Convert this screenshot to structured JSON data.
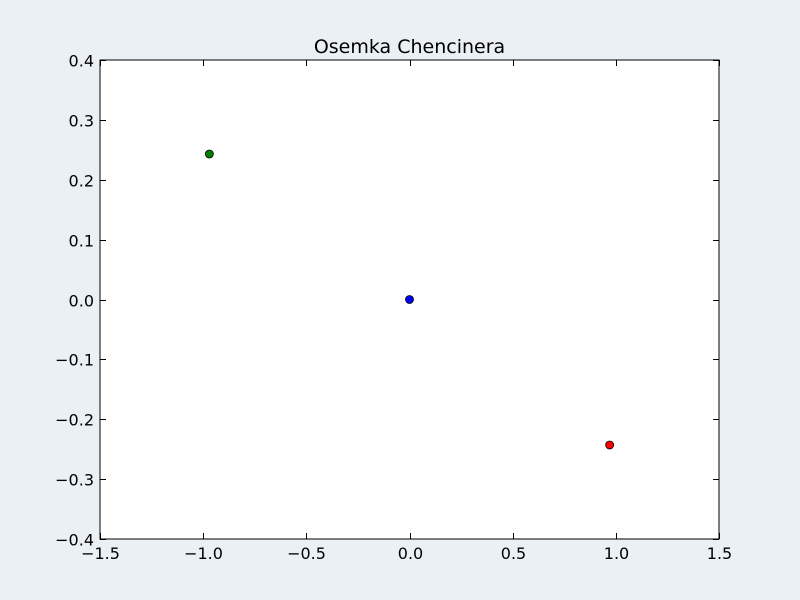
{
  "chart_data": {
    "type": "scatter",
    "title": "Osemka Chencinera",
    "xlabel": "",
    "ylabel": "",
    "xlim": [
      -1.5,
      1.5
    ],
    "ylim": [
      -0.4,
      0.4
    ],
    "grid": false,
    "x_ticks": [
      -1.5,
      -1.0,
      -0.5,
      0.0,
      0.5,
      1.0,
      1.5
    ],
    "x_tick_labels": [
      "−1.5",
      "−1.0",
      "−0.5",
      "0.0",
      "0.5",
      "1.0",
      "1.5"
    ],
    "y_ticks": [
      0.4,
      0.3,
      0.2,
      0.1,
      0.0,
      -0.1,
      -0.2,
      -0.3,
      -0.4
    ],
    "y_tick_labels": [
      "0.4",
      "0.3",
      "0.2",
      "0.1",
      "0.0",
      "−0.1",
      "−0.2",
      "−0.3",
      "−0.4"
    ],
    "series": [
      {
        "points": [
          {
            "x": 0.0,
            "y": 0.0
          }
        ],
        "color": "#0000ff"
      },
      {
        "points": [
          {
            "x": 0.97,
            "y": -0.243
          }
        ],
        "color": "#ff0000"
      },
      {
        "points": [
          {
            "x": -0.97,
            "y": 0.243
          }
        ],
        "color": "#008000"
      }
    ],
    "frame_color": "#000000",
    "plot_background": "#ffffff"
  }
}
